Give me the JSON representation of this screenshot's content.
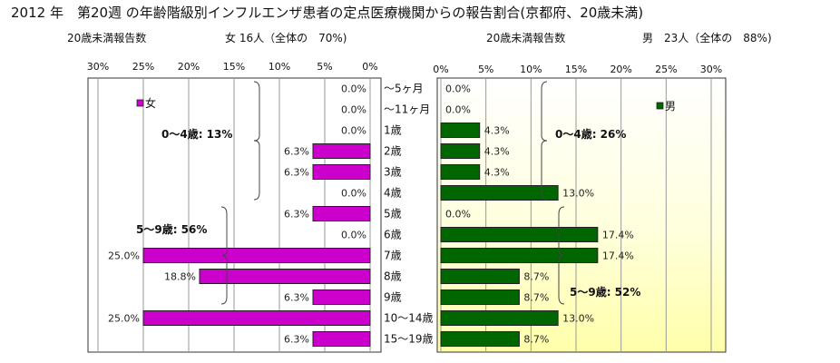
{
  "title": "2012 年　第20週 の年齢階級別インフルエンザ患者の定点医療機関からの報告割合(京都府、20歳未満)",
  "female_header": {
    "label": "20歳未満報告数",
    "summary": "女 16人（全体の　70%)"
  },
  "male_header": {
    "label": "20歳未満報告数",
    "summary": "男　23人（全体の　88%)"
  },
  "chart_data": {
    "type": "bar",
    "orientation": "horizontal",
    "layout": "population-pyramid",
    "categories": [
      "～5ヶ月",
      "～11ヶ月",
      "1歳",
      "2歳",
      "3歳",
      "4歳",
      "5歳",
      "6歳",
      "7歳",
      "8歳",
      "9歳",
      "10～14歳",
      "15～19歳"
    ],
    "xlim": [
      0,
      30
    ],
    "ticks": [
      "0%",
      "5%",
      "10%",
      "15%",
      "20%",
      "25%",
      "30%"
    ],
    "grid": true,
    "series": [
      {
        "name": "女",
        "color": "#cc00cc",
        "side": "left",
        "values": [
          0.0,
          0.0,
          0.0,
          6.3,
          6.3,
          0.0,
          6.3,
          0.0,
          25.0,
          18.8,
          6.3,
          25.0,
          6.3
        ],
        "labels": [
          "0.0%",
          "0.0%",
          "0.0%",
          "6.3%",
          "6.3%",
          "0.0%",
          "6.3%",
          "0.0%",
          "25.0%",
          "18.8%",
          "6.3%",
          "25.0%",
          "6.3%"
        ],
        "annotations": [
          {
            "text": "0～4歳: 13%",
            "from": 0,
            "to": 5
          },
          {
            "text": "5～9歳: 56%",
            "from": 6,
            "to": 10
          }
        ]
      },
      {
        "name": "男",
        "color": "#006600",
        "side": "right",
        "values": [
          0.0,
          0.0,
          4.3,
          4.3,
          4.3,
          13.0,
          0.0,
          17.4,
          17.4,
          8.7,
          8.7,
          13.0,
          8.7
        ],
        "labels": [
          "0.0%",
          "0.0%",
          "4.3%",
          "4.3%",
          "4.3%",
          "13.0%",
          "0.0%",
          "17.4%",
          "17.4%",
          "8.7%",
          "8.7%",
          "13.0%",
          "8.7%"
        ],
        "annotations": [
          {
            "text": "0～4歳: 26%",
            "from": 0,
            "to": 5
          },
          {
            "text": "5～9歳: 52%",
            "from": 6,
            "to": 10
          }
        ]
      }
    ]
  }
}
